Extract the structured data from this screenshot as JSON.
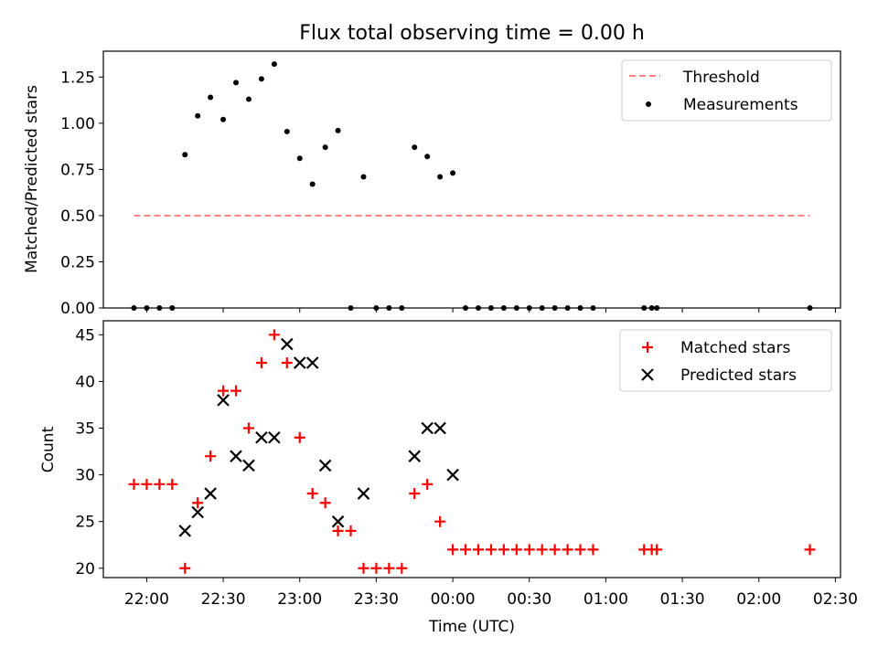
{
  "chart_data": [
    {
      "type": "scatter",
      "panel": "top",
      "title": "Flux total observing time = 0.00 h",
      "xlabel": "",
      "ylabel": "Matched/Predicted stars",
      "ylim": [
        0,
        1.39
      ],
      "yticks": [
        0.0,
        0.25,
        0.5,
        0.75,
        1.0,
        1.25
      ],
      "ytick_labels": [
        "0.00",
        "0.25",
        "0.50",
        "0.75",
        "1.00",
        "1.25"
      ],
      "legend_position": "top-right",
      "threshold": {
        "name": "Threshold",
        "value": 0.5,
        "x_start": -5,
        "x_end": 260,
        "color": "#ff7f7f"
      },
      "series": [
        {
          "name": "Measurements",
          "color": "#000000",
          "marker": "dot",
          "points": [
            [
              -5,
              0
            ],
            [
              0,
              0
            ],
            [
              5,
              0
            ],
            [
              10,
              0
            ],
            [
              15,
              0.83
            ],
            [
              20,
              1.04
            ],
            [
              25,
              1.14
            ],
            [
              30,
              1.02
            ],
            [
              35,
              1.22
            ],
            [
              40,
              1.13
            ],
            [
              45,
              1.24
            ],
            [
              50,
              1.32
            ],
            [
              55,
              0.955
            ],
            [
              60,
              0.81
            ],
            [
              65,
              0.67
            ],
            [
              70,
              0.87
            ],
            [
              75,
              0.96
            ],
            [
              80,
              0
            ],
            [
              85,
              0.71
            ],
            [
              90,
              0
            ],
            [
              95,
              0
            ],
            [
              100,
              0
            ],
            [
              105,
              0.87
            ],
            [
              110,
              0.82
            ],
            [
              115,
              0.71
            ],
            [
              120,
              0.73
            ],
            [
              125,
              0
            ],
            [
              130,
              0
            ],
            [
              135,
              0
            ],
            [
              140,
              0
            ],
            [
              145,
              0
            ],
            [
              150,
              0
            ],
            [
              155,
              0
            ],
            [
              160,
              0
            ],
            [
              165,
              0
            ],
            [
              170,
              0
            ],
            [
              175,
              0
            ],
            [
              195,
              0
            ],
            [
              198,
              0
            ],
            [
              200,
              0
            ],
            [
              260,
              0
            ]
          ]
        }
      ]
    },
    {
      "type": "scatter",
      "panel": "bottom",
      "xlabel": "Time (UTC)",
      "ylabel": "Count",
      "xlim": [
        -17,
        272
      ],
      "ylim": [
        19,
        46.5
      ],
      "yticks": [
        20,
        25,
        30,
        35,
        40,
        45
      ],
      "xticks": [
        0,
        30,
        60,
        90,
        120,
        150,
        180,
        210,
        240,
        270
      ],
      "xtick_labels": [
        "22:00",
        "22:30",
        "23:00",
        "23:30",
        "00:00",
        "00:30",
        "01:00",
        "01:30",
        "02:00",
        "02:30"
      ],
      "x_unit": "minutes after 22:00 UTC",
      "legend_position": "top-right",
      "series": [
        {
          "name": "Matched stars",
          "color": "#ff0000",
          "marker": "plus",
          "points": [
            [
              -5,
              29
            ],
            [
              0,
              29
            ],
            [
              5,
              29
            ],
            [
              10,
              29
            ],
            [
              15,
              20
            ],
            [
              20,
              27
            ],
            [
              25,
              32
            ],
            [
              30,
              39
            ],
            [
              35,
              39
            ],
            [
              40,
              35
            ],
            [
              45,
              42
            ],
            [
              50,
              45
            ],
            [
              55,
              42
            ],
            [
              60,
              34
            ],
            [
              65,
              28
            ],
            [
              70,
              27
            ],
            [
              75,
              24
            ],
            [
              80,
              24
            ],
            [
              85,
              20
            ],
            [
              90,
              20
            ],
            [
              95,
              20
            ],
            [
              100,
              20
            ],
            [
              105,
              28
            ],
            [
              110,
              29
            ],
            [
              115,
              25
            ],
            [
              120,
              22
            ],
            [
              125,
              22
            ],
            [
              130,
              22
            ],
            [
              135,
              22
            ],
            [
              140,
              22
            ],
            [
              145,
              22
            ],
            [
              150,
              22
            ],
            [
              155,
              22
            ],
            [
              160,
              22
            ],
            [
              165,
              22
            ],
            [
              170,
              22
            ],
            [
              175,
              22
            ],
            [
              195,
              22
            ],
            [
              198,
              22
            ],
            [
              200,
              22
            ],
            [
              260,
              22
            ]
          ]
        },
        {
          "name": "Predicted stars",
          "color": "#000000",
          "marker": "x",
          "points": [
            [
              15,
              24
            ],
            [
              20,
              26
            ],
            [
              25,
              28
            ],
            [
              30,
              38
            ],
            [
              35,
              32
            ],
            [
              40,
              31
            ],
            [
              45,
              34
            ],
            [
              50,
              34
            ],
            [
              55,
              44
            ],
            [
              60,
              42
            ],
            [
              65,
              42
            ],
            [
              70,
              31
            ],
            [
              75,
              25
            ],
            [
              85,
              28
            ],
            [
              105,
              32
            ],
            [
              110,
              35
            ],
            [
              115,
              35
            ],
            [
              120,
              30
            ]
          ]
        }
      ]
    }
  ]
}
